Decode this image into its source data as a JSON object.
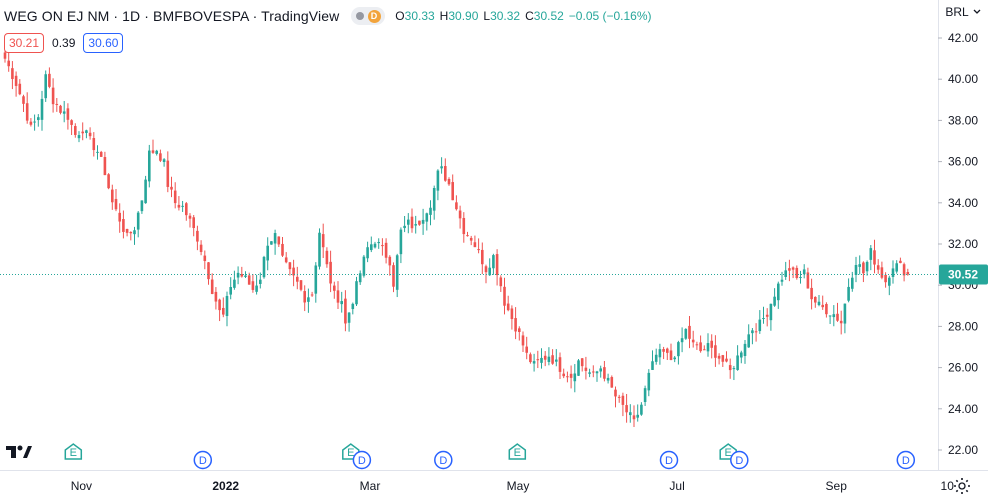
{
  "header": {
    "title": "WEG ON EJ NM · 1D · BMFBOVESPA · TradingView",
    "status_badge": "D",
    "ohlc": {
      "o_key": "O",
      "o_val": "30.33",
      "h_key": "H",
      "h_val": "30.90",
      "l_key": "L",
      "l_val": "30.32",
      "c_key": "C",
      "c_val": "30.52",
      "change": "−0.05 (−0.16%)"
    },
    "sell_price": "30.21",
    "spread": "0.39",
    "buy_price": "30.60"
  },
  "currency_selector": "BRL",
  "last_price_label": "30.52",
  "colors": {
    "up": "#26a69a",
    "down": "#ef5350",
    "last_price": "#26a69a",
    "event_earnings": "#26a69a",
    "event_dividend": "#2962ff"
  },
  "chart_data": {
    "type": "candlestick",
    "symbol": "WEG ON EJ NM",
    "interval": "1D",
    "exchange": "BMFBOVESPA",
    "ylim": [
      21.5,
      43.0
    ],
    "y_ticks": [
      "42.00",
      "40.00",
      "38.00",
      "36.00",
      "34.00",
      "32.00",
      "30.00",
      "28.00",
      "26.00",
      "24.00",
      "22.00"
    ],
    "x_ticks": [
      "Nov",
      "2022",
      "Mar",
      "May",
      "Jul",
      "Sep",
      "10"
    ],
    "last_price": 30.52,
    "path_points": [
      [
        0,
        41.0
      ],
      [
        3,
        39.8
      ],
      [
        5,
        38.8
      ],
      [
        7,
        37.6
      ],
      [
        9,
        38.2
      ],
      [
        11,
        40.1
      ],
      [
        13,
        39.0
      ],
      [
        15,
        38.5
      ],
      [
        17,
        38.2
      ],
      [
        19,
        37.3
      ],
      [
        21,
        37.6
      ],
      [
        23,
        37.0
      ],
      [
        25,
        36.5
      ],
      [
        27,
        35.5
      ],
      [
        29,
        34.0
      ],
      [
        31,
        33.2
      ],
      [
        33,
        32.3
      ],
      [
        35,
        32.8
      ],
      [
        37,
        34.2
      ],
      [
        39,
        36.4
      ],
      [
        41,
        36.6
      ],
      [
        43,
        35.9
      ],
      [
        44,
        34.9
      ],
      [
        46,
        34.0
      ],
      [
        48,
        33.8
      ],
      [
        50,
        33.1
      ],
      [
        52,
        32.3
      ],
      [
        54,
        31.2
      ],
      [
        56,
        29.8
      ],
      [
        58,
        28.7
      ],
      [
        59,
        28.5
      ],
      [
        61,
        30.0
      ],
      [
        63,
        30.6
      ],
      [
        65,
        30.3
      ],
      [
        67,
        29.8
      ],
      [
        69,
        30.4
      ],
      [
        71,
        32.1
      ],
      [
        73,
        32.4
      ],
      [
        75,
        31.2
      ],
      [
        77,
        30.6
      ],
      [
        79,
        30.1
      ],
      [
        81,
        29.4
      ],
      [
        83,
        29.6
      ],
      [
        85,
        32.6
      ],
      [
        87,
        30.9
      ],
      [
        89,
        29.5
      ],
      [
        91,
        29.3
      ],
      [
        92,
        28.1
      ],
      [
        94,
        29.3
      ],
      [
        96,
        30.6
      ],
      [
        98,
        31.8
      ],
      [
        100,
        32.2
      ],
      [
        102,
        31.7
      ],
      [
        104,
        31.2
      ],
      [
        105,
        30.1
      ],
      [
        107,
        32.6
      ],
      [
        109,
        33.0
      ],
      [
        111,
        32.8
      ],
      [
        113,
        33.4
      ],
      [
        115,
        34.0
      ],
      [
        117,
        35.4
      ],
      [
        118,
        35.6
      ],
      [
        120,
        34.9
      ],
      [
        122,
        33.8
      ],
      [
        124,
        32.7
      ],
      [
        126,
        32.3
      ],
      [
        128,
        31.6
      ],
      [
        130,
        30.8
      ],
      [
        132,
        31.4
      ],
      [
        134,
        30.0
      ],
      [
        135,
        29.2
      ],
      [
        137,
        28.4
      ],
      [
        139,
        27.6
      ],
      [
        141,
        26.6
      ],
      [
        143,
        26.1
      ],
      [
        145,
        26.4
      ],
      [
        147,
        26.6
      ],
      [
        149,
        26.2
      ],
      [
        151,
        25.8
      ],
      [
        153,
        25.6
      ],
      [
        155,
        26.3
      ],
      [
        157,
        25.9
      ],
      [
        159,
        25.6
      ],
      [
        161,
        26.0
      ],
      [
        163,
        25.3
      ],
      [
        165,
        24.6
      ],
      [
        167,
        24.1
      ],
      [
        169,
        23.6
      ],
      [
        170,
        23.3
      ],
      [
        172,
        24.2
      ],
      [
        174,
        25.6
      ],
      [
        176,
        26.6
      ],
      [
        178,
        26.7
      ],
      [
        180,
        26.4
      ],
      [
        182,
        27.0
      ],
      [
        184,
        27.8
      ],
      [
        186,
        27.1
      ],
      [
        188,
        26.8
      ],
      [
        190,
        27.0
      ],
      [
        192,
        26.7
      ],
      [
        194,
        26.3
      ],
      [
        196,
        25.8
      ],
      [
        198,
        26.5
      ],
      [
        200,
        27.3
      ],
      [
        202,
        27.9
      ],
      [
        204,
        28.1
      ],
      [
        206,
        28.7
      ],
      [
        208,
        29.6
      ],
      [
        210,
        30.4
      ],
      [
        212,
        30.8
      ],
      [
        214,
        30.3
      ],
      [
        216,
        30.6
      ],
      [
        218,
        29.4
      ],
      [
        220,
        29.0
      ],
      [
        222,
        28.8
      ],
      [
        224,
        28.6
      ],
      [
        226,
        28.2
      ],
      [
        228,
        30.0
      ],
      [
        230,
        31.2
      ],
      [
        232,
        30.6
      ],
      [
        234,
        31.6
      ],
      [
        236,
        30.8
      ],
      [
        238,
        30.2
      ],
      [
        240,
        31.0
      ],
      [
        242,
        30.9
      ],
      [
        244,
        30.52
      ]
    ],
    "events": [
      {
        "type": "E",
        "x_index": 19
      },
      {
        "type": "D",
        "x_index": 54
      },
      {
        "type": "E",
        "x_index": 94
      },
      {
        "type": "D",
        "x_index": 97
      },
      {
        "type": "D",
        "x_index": 119
      },
      {
        "type": "E",
        "x_index": 139
      },
      {
        "type": "D",
        "x_index": 180
      },
      {
        "type": "E",
        "x_index": 196
      },
      {
        "type": "D",
        "x_index": 199
      },
      {
        "type": "D",
        "x_index": 244
      }
    ],
    "x_tick_positions": [
      22,
      61,
      100,
      140,
      183,
      226,
      256
    ]
  }
}
